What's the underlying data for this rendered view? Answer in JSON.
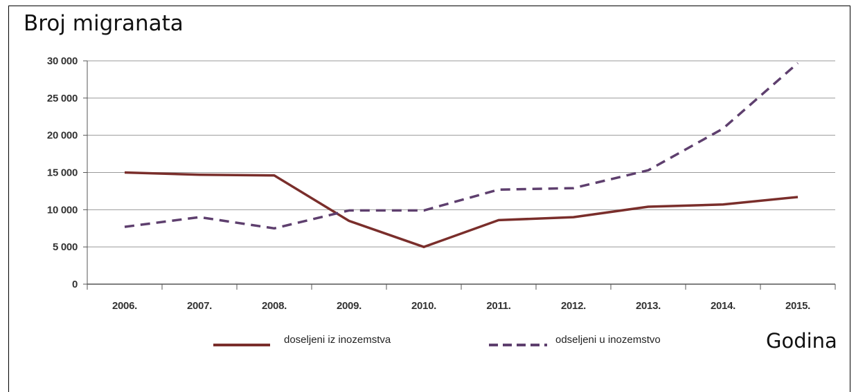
{
  "chart_data": {
    "type": "line",
    "ylabel": "Broj migranata",
    "xlabel": "Godina",
    "categories": [
      "2006.",
      "2007.",
      "2008.",
      "2009.",
      "2010.",
      "2011.",
      "2012.",
      "2013.",
      "2014.",
      "2015."
    ],
    "ylim": [
      0,
      30000
    ],
    "yticks": [
      0,
      5000,
      10000,
      15000,
      20000,
      25000,
      30000
    ],
    "ytick_labels": [
      "0",
      "5 000",
      "10 000",
      "15 000",
      "20 000",
      "25 000",
      "30 000"
    ],
    "grid": "horizontal",
    "legend_position": "bottom",
    "series": [
      {
        "name": "doseljeni iz inozemstva",
        "style": "solid",
        "color": "#7a2e2b",
        "values": [
          15000,
          14700,
          14600,
          8500,
          5000,
          8600,
          9000,
          10400,
          10700,
          11700
        ]
      },
      {
        "name": "odseljeni u inozemstvo",
        "style": "dashed",
        "color": "#5e3f6e",
        "values": [
          7700,
          9000,
          7500,
          9900,
          9900,
          12700,
          12900,
          15300,
          20900,
          29700
        ]
      }
    ]
  }
}
